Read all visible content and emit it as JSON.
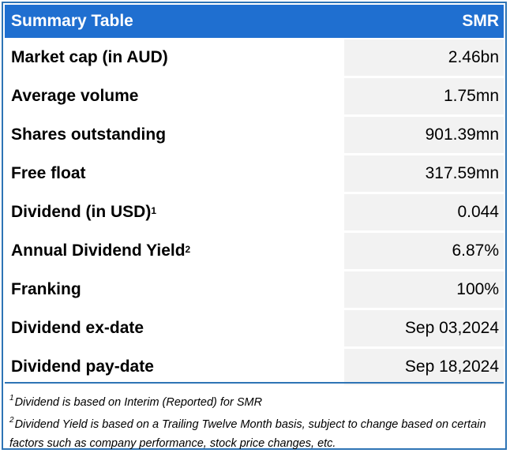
{
  "header": {
    "title": "Summary Table",
    "ticker": "SMR"
  },
  "rows": [
    {
      "label": "Market cap (in AUD)",
      "sup": "",
      "value": "2.46bn"
    },
    {
      "label": "Average volume",
      "sup": "",
      "value": "1.75mn"
    },
    {
      "label": "Shares outstanding",
      "sup": "",
      "value": "901.39mn"
    },
    {
      "label": "Free float",
      "sup": "",
      "value": "317.59mn"
    },
    {
      "label": "Dividend (in USD)",
      "sup": "1",
      "value": "0.044"
    },
    {
      "label": "Annual Dividend Yield",
      "sup": "2",
      "value": "6.87%"
    },
    {
      "label": "Franking",
      "sup": "",
      "value": "100%"
    },
    {
      "label": "Dividend ex-date",
      "sup": "",
      "value": "Sep 03,2024"
    },
    {
      "label": "Dividend pay-date",
      "sup": "",
      "value": "Sep 18,2024"
    }
  ],
  "footnotes": [
    {
      "mark": "1",
      "text": "Dividend is based on Interim (Reported) for SMR"
    },
    {
      "mark": "2",
      "text": "Dividend Yield is based on a Trailing Twelve Month basis, subject to change based on certain factors such as company performance, stock price changes, etc."
    }
  ],
  "colors": {
    "header_bg": "#1f6fd0",
    "border": "#2e74b5",
    "value_bg": "#f2f2f2"
  }
}
